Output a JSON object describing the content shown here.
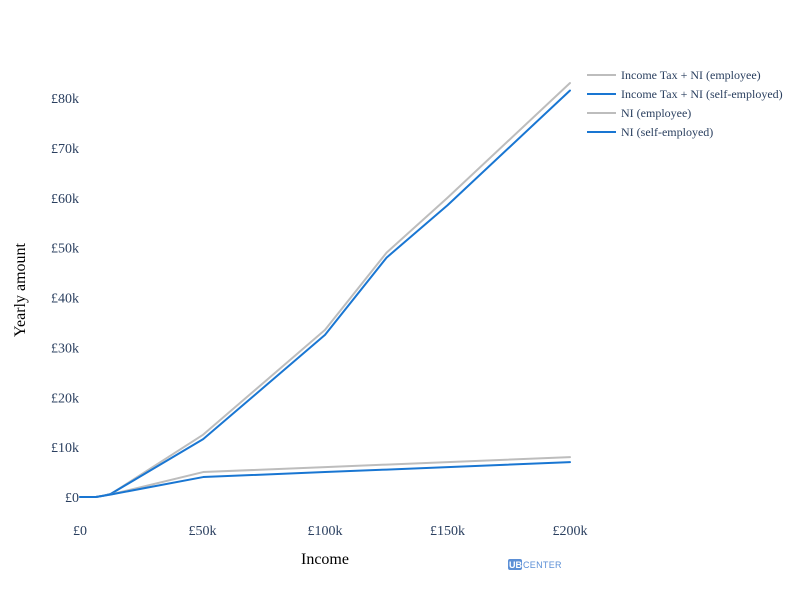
{
  "chart_data": {
    "type": "line",
    "xlabel": "Income",
    "ylabel": "Yearly amount",
    "xlim": [
      0,
      200000
    ],
    "ylim": [
      0,
      80000
    ],
    "x_ticks": [
      {
        "value": 0,
        "label": "£0"
      },
      {
        "value": 50000,
        "label": "£50k"
      },
      {
        "value": 100000,
        "label": "£100k"
      },
      {
        "value": 150000,
        "label": "£150k"
      },
      {
        "value": 200000,
        "label": "£200k"
      }
    ],
    "y_ticks": [
      {
        "value": 0,
        "label": "£0"
      },
      {
        "value": 10000,
        "label": "£10k"
      },
      {
        "value": 20000,
        "label": "£20k"
      },
      {
        "value": 30000,
        "label": "£30k"
      },
      {
        "value": 40000,
        "label": "£40k"
      },
      {
        "value": 50000,
        "label": "£50k"
      },
      {
        "value": 60000,
        "label": "£60k"
      },
      {
        "value": 70000,
        "label": "£70k"
      },
      {
        "value": 80000,
        "label": "£80k"
      }
    ],
    "grid": false,
    "legend_position": "top-right",
    "series": [
      {
        "name": "Income Tax + NI (employee)",
        "color": "#BDBDBD",
        "x": [
          0,
          6500,
          9500,
          12570,
          50270,
          100000,
          125140,
          150000,
          200000
        ],
        "y": [
          0,
          0,
          250,
          620,
          12500,
          33500,
          49000,
          60000,
          83000
        ]
      },
      {
        "name": "Income Tax + NI (self-employed)",
        "color": "#1976D2",
        "x": [
          0,
          6500,
          9500,
          12570,
          50270,
          100000,
          125140,
          150000,
          200000
        ],
        "y": [
          0,
          0,
          250,
          620,
          11600,
          32500,
          48000,
          58500,
          81500
        ]
      },
      {
        "name": "NI (employee)",
        "color": "#BDBDBD",
        "x": [
          0,
          6500,
          9500,
          12570,
          50270,
          100000,
          125140,
          150000,
          200000
        ],
        "y": [
          0,
          0,
          250,
          500,
          5000,
          6000,
          6500,
          7000,
          8000
        ]
      },
      {
        "name": "NI (self-employed)",
        "color": "#1976D2",
        "x": [
          0,
          6500,
          9500,
          12570,
          50270,
          100000,
          125140,
          150000,
          200000
        ],
        "y": [
          0,
          0,
          250,
          500,
          4000,
          5000,
          5500,
          6000,
          7000
        ]
      }
    ]
  },
  "logo": {
    "ubi": "UBI",
    "center": "CENTER",
    "color": "#5b8fd6"
  }
}
